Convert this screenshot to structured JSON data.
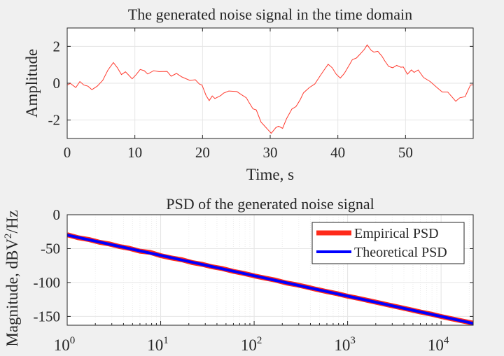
{
  "chart_data": [
    {
      "type": "line",
      "title": "The generated noise signal in the time domain",
      "xlabel": "Time, s",
      "ylabel": "Amplitude",
      "xlim": [
        0,
        60
      ],
      "ylim": [
        -3,
        3
      ],
      "xticks": [
        0,
        10,
        20,
        30,
        40,
        50
      ],
      "yticks": [
        -2,
        0,
        2
      ],
      "grid": true,
      "color": "#ff3b2f",
      "x": [
        0,
        0.48,
        1.27,
        1.87,
        2.46,
        3.06,
        3.65,
        4.44,
        5.24,
        6.03,
        6.83,
        7.42,
        8.02,
        8.61,
        9.01,
        9.6,
        10.2,
        10.79,
        11.39,
        11.9,
        12.78,
        13.57,
        14.76,
        15.36,
        16.15,
        16.94,
        18.13,
        18.93,
        19.52,
        19.92,
        20.52,
        20.99,
        21.43,
        21.83,
        22.7,
        23.1,
        23.89,
        25.08,
        25.67,
        26.47,
        26.87,
        27.46,
        27.94,
        28.65,
        29.44,
        30.16,
        30.83,
        31.23,
        31.83,
        32.42,
        33.21,
        33.81,
        34.4,
        34.92,
        35.79,
        36.59,
        37.38,
        37.98,
        38.57,
        39.17,
        39.76,
        40.36,
        40.95,
        41.75,
        42.14,
        42.74,
        43.33,
        43.93,
        44.33,
        44.92,
        45.32,
        45.91,
        46.51,
        46.9,
        47.5,
        48.1,
        48.69,
        49.29,
        49.68,
        50.28,
        50.87,
        51.27,
        51.87,
        52.66,
        53.65,
        54.64,
        55.44,
        56.23,
        56.83,
        57.42,
        58.02,
        58.81,
        59.21,
        59.6,
        60
      ],
      "y": [
        -0.1,
        -0.01,
        -0.23,
        0.09,
        -0.1,
        -0.16,
        -0.35,
        -0.16,
        0.15,
        0.72,
        1.12,
        0.84,
        0.47,
        0.62,
        0.47,
        0.24,
        0.47,
        0.75,
        0.68,
        0.5,
        0.68,
        0.63,
        0.64,
        0.38,
        0.53,
        0.34,
        0.15,
        0.19,
        -0.04,
        -0.1,
        -0.67,
        -0.94,
        -0.69,
        -0.83,
        -0.67,
        -0.54,
        -0.42,
        -0.45,
        -0.6,
        -0.79,
        -1.04,
        -1.39,
        -1.45,
        -2.11,
        -2.43,
        -2.72,
        -2.41,
        -2.33,
        -2.45,
        -1.92,
        -1.4,
        -1.27,
        -0.92,
        -0.52,
        -0.23,
        -0.04,
        0.4,
        0.72,
        1.03,
        0.84,
        0.49,
        0.28,
        0.53,
        1.03,
        1.28,
        1.37,
        1.6,
        1.85,
        2.08,
        1.79,
        1.69,
        1.73,
        1.47,
        1.23,
        0.91,
        0.84,
        0.97,
        0.87,
        0.88,
        0.49,
        0.72,
        0.59,
        0.72,
        0.31,
        0.09,
        -0.23,
        -0.48,
        -0.48,
        -0.73,
        -0.98,
        -0.79,
        -0.73,
        -0.4,
        -0.1,
        -0.08
      ]
    },
    {
      "type": "line",
      "title": "PSD of the generated noise signal",
      "xlabel": "",
      "ylabel": "Magnitude, dBV",
      "ylabel_sup": "2",
      "ylabel_suffix": "/Hz",
      "xscale": "log",
      "xlim": [
        1,
        22050
      ],
      "ylim": [
        -163,
        0
      ],
      "xticks": [
        1,
        10,
        100,
        1000,
        10000
      ],
      "xtick_base": "10",
      "xtick_exponents": [
        "0",
        "1",
        "2",
        "3",
        "4"
      ],
      "yticks": [
        -150,
        -100,
        -50,
        0
      ],
      "grid": true,
      "legend_position": "top-right",
      "series": [
        {
          "name": "Empirical PSD",
          "color": "#ff2a1a",
          "x": [
            1,
            1.3,
            1.7,
            2.2,
            2.8,
            3.6,
            4.6,
            6,
            7.7,
            10,
            13,
            17,
            22,
            28,
            36,
            46,
            60,
            77,
            100,
            130,
            170,
            220,
            280,
            360,
            460,
            600,
            770,
            1000,
            1300,
            1700,
            2200,
            2800,
            3600,
            4600,
            6000,
            7700,
            10000,
            13000,
            17000,
            22050
          ],
          "y": [
            -29.5,
            -33.8,
            -36.5,
            -40.5,
            -43,
            -46.8,
            -49.5,
            -53.8,
            -55.5,
            -60.3,
            -63.8,
            -66.5,
            -70.8,
            -73.2,
            -77,
            -79.5,
            -83.6,
            -86.5,
            -90.2,
            -93.5,
            -96.6,
            -100.6,
            -103.2,
            -106.5,
            -110,
            -113.4,
            -116.4,
            -120.2,
            -123.3,
            -126.8,
            -130.2,
            -133.4,
            -136.6,
            -139.9,
            -143.5,
            -146.4,
            -150.1,
            -153.5,
            -156.8,
            -160
          ]
        },
        {
          "name": "Theoretical PSD",
          "color": "#0000ff",
          "x": [
            1,
            22050
          ],
          "y": [
            -30,
            -160.3
          ]
        }
      ]
    }
  ]
}
